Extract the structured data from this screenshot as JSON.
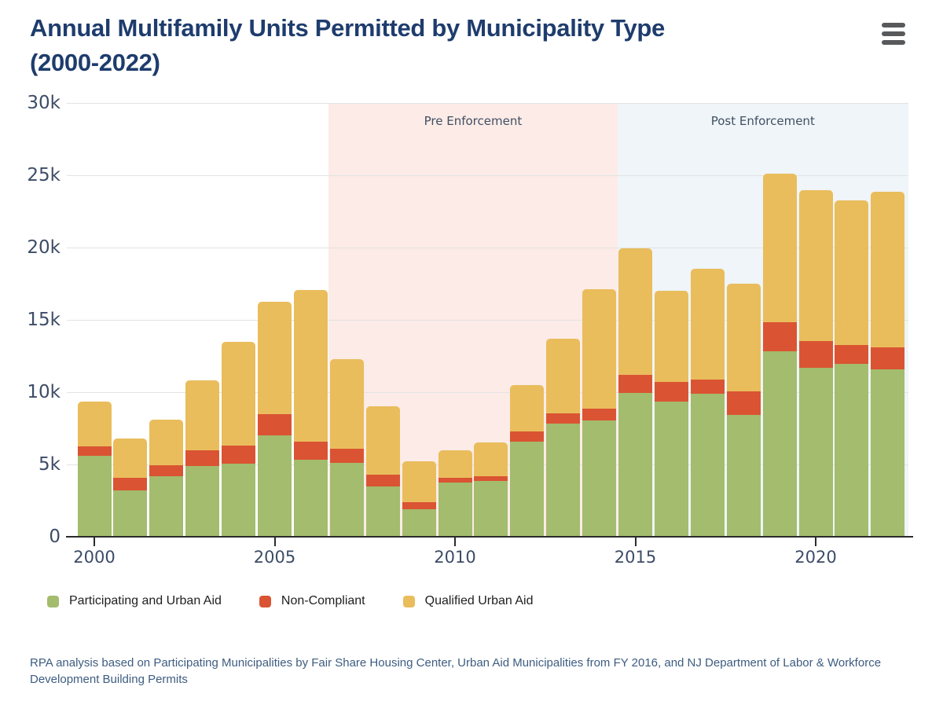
{
  "page": {
    "title": "Annual Multifamily Units Permitted by Municipality Type (2000-2022)",
    "footnote": "RPA analysis based on Participating Municipalities by Fair Share Housing Center, Urban Aid Municipalities from FY 2016, and NJ Department of Labor & Workforce Development Building Permits"
  },
  "colors": {
    "title": "#1e3c6d",
    "axis_label": "#3d4c66",
    "gridline": "#e3e3e3",
    "axis_line": "#2b2b2b",
    "pre_enforcement_bg": "#fcebe7",
    "post_enforcement_bg": "#eff5f8"
  },
  "chart_data": {
    "type": "bar",
    "stacked": true,
    "title": "Annual Multifamily Units Permitted by Municipality Type (2000-2022)",
    "unit": "thousands of units permitted",
    "categories": [
      2000,
      2001,
      2002,
      2003,
      2004,
      2005,
      2006,
      2007,
      2008,
      2009,
      2010,
      2011,
      2012,
      2013,
      2014,
      2015,
      2016,
      2017,
      2018,
      2019,
      2020,
      2021,
      2022
    ],
    "series": [
      {
        "name": "Participating and Urban Aid",
        "color": "#a3bc6d",
        "values": [
          5.6,
          3.2,
          4.2,
          4.9,
          5.05,
          7.0,
          5.3,
          5.1,
          3.5,
          1.9,
          3.75,
          3.85,
          6.55,
          7.8,
          8.05,
          9.95,
          9.35,
          9.9,
          8.4,
          12.8,
          11.7,
          11.95,
          11.6
        ]
      },
      {
        "name": "Non-Compliant",
        "color": "#da5433",
        "values": [
          0.65,
          0.9,
          0.75,
          1.1,
          1.25,
          1.5,
          1.3,
          1.0,
          0.8,
          0.5,
          0.3,
          0.35,
          0.75,
          0.75,
          0.8,
          1.25,
          1.35,
          0.95,
          1.65,
          2.05,
          1.85,
          1.3,
          1.5
        ]
      },
      {
        "name": "Qualified Urban Aid",
        "color": "#e9bd5c",
        "values": [
          3.1,
          2.7,
          3.15,
          4.8,
          7.2,
          7.75,
          10.45,
          6.2,
          4.75,
          2.8,
          1.95,
          2.3,
          3.2,
          5.15,
          8.25,
          8.75,
          6.3,
          7.7,
          7.45,
          10.25,
          10.4,
          10.0,
          10.75
        ]
      }
    ],
    "totals": [
      9.35,
      6.8,
      8.1,
      10.8,
      13.5,
      16.25,
      17.05,
      12.3,
      9.05,
      5.2,
      6.0,
      6.5,
      10.5,
      13.7,
      17.1,
      19.95,
      17.0,
      18.55,
      17.5,
      25.1,
      23.95,
      23.25,
      23.85
    ],
    "ylim": [
      0,
      30
    ],
    "yticks": [
      {
        "label": "30k",
        "value": 30
      },
      {
        "label": "25k",
        "value": 25
      },
      {
        "label": "20k",
        "value": 20
      },
      {
        "label": "15k",
        "value": 15
      },
      {
        "label": "10k",
        "value": 10
      },
      {
        "label": "5k",
        "value": 5
      },
      {
        "label": "0",
        "value": 0
      }
    ],
    "xticks": [
      {
        "label": "2000",
        "value": 2000
      },
      {
        "label": "2005",
        "value": 2005
      },
      {
        "label": "2010",
        "value": 2010
      },
      {
        "label": "2015",
        "value": 2015
      },
      {
        "label": "2020",
        "value": 2020
      }
    ],
    "regions": [
      {
        "label": "Pre Enforcement",
        "color": "#fcebe7",
        "from": 2006.5,
        "to": 2014.5
      },
      {
        "label": "Post Enforcement",
        "color": "#eff5f8",
        "from": 2014.5,
        "to": 2023
      }
    ],
    "grid": true,
    "legend_position": "bottom"
  }
}
